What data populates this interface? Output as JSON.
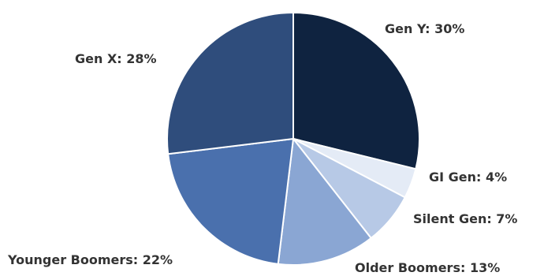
{
  "chart_data": {
    "type": "pie",
    "title": "",
    "start_angle_deg": -90,
    "direction": "clockwise",
    "slices": [
      {
        "label": "Gen Y: 30%",
        "name": "Gen Y",
        "value": 30,
        "color": "#0f2340"
      },
      {
        "label": "GI Gen: 4%",
        "name": "GI Gen",
        "value": 4,
        "color": "#e4ebf6"
      },
      {
        "label": "Silent Gen: 7%",
        "name": "Silent Gen",
        "value": 7,
        "color": "#b7c9e6"
      },
      {
        "label": "Older Boomers: 13%",
        "name": "Older Boomers",
        "value": 13,
        "color": "#8aa6d3"
      },
      {
        "label": "Younger Boomers: 22%",
        "name": "Younger Boomers",
        "value": 22,
        "color": "#4a70ad"
      },
      {
        "label": "Gen X: 28%",
        "name": "Gen X",
        "value": 28,
        "color": "#2f4d7c"
      }
    ]
  }
}
